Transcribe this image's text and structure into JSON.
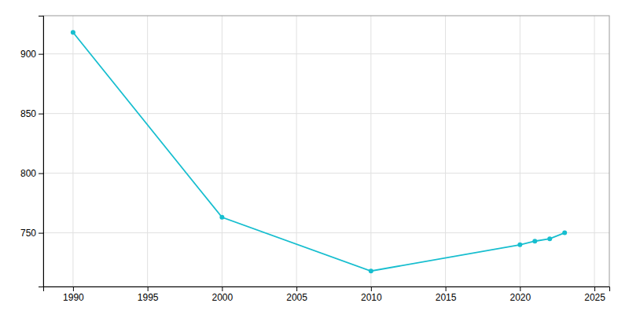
{
  "chart_data": {
    "type": "line",
    "x": [
      1990,
      2000,
      2010,
      2020,
      2021,
      2022,
      2023
    ],
    "values": [
      918,
      763,
      718,
      740,
      743,
      745,
      750
    ],
    "color": "#17BECF",
    "marker": "circle",
    "xlim": [
      1988,
      2026
    ],
    "ylim": [
      705,
      932
    ],
    "xticks": [
      1990,
      1995,
      2000,
      2005,
      2010,
      2015,
      2020,
      2025
    ],
    "yticks": [
      750,
      800,
      850,
      900
    ],
    "grid": true
  }
}
